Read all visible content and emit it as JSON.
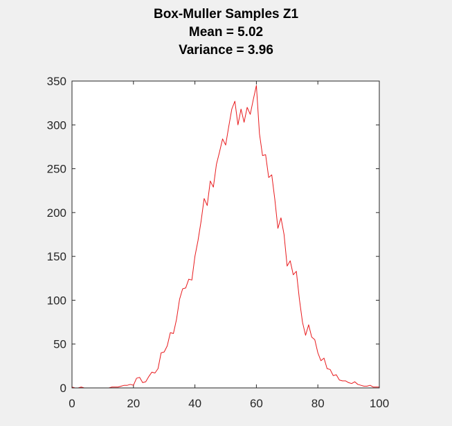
{
  "window": {
    "background": "#f0f0f0"
  },
  "chart_data": {
    "type": "line",
    "title": [
      "Box-Muller Samples Z1",
      "Mean = 5.02",
      "Variance = 3.96"
    ],
    "xlabel": "",
    "ylabel": "",
    "xlim": [
      0,
      100
    ],
    "ylim": [
      0,
      350
    ],
    "xticks": [
      0,
      20,
      40,
      60,
      80,
      100
    ],
    "yticks": [
      0,
      50,
      100,
      150,
      200,
      250,
      300,
      350
    ],
    "grid": false,
    "legend": "none",
    "colors": {
      "series": "#e8191c",
      "axes": "#262626",
      "plot_background": "#ffffff"
    },
    "series": [
      {
        "x": [
          0,
          1,
          2,
          3,
          4,
          5,
          6,
          7,
          8,
          9,
          10,
          11,
          12,
          13,
          14,
          15,
          16,
          17,
          18,
          19,
          20,
          21,
          22,
          23,
          24,
          25,
          26,
          27,
          28,
          29,
          30,
          31,
          32,
          33,
          34,
          35,
          36,
          37,
          38,
          39,
          40,
          41,
          42,
          43,
          44,
          45,
          46,
          47,
          48,
          49,
          50,
          51,
          52,
          53,
          54,
          55,
          56,
          57,
          58,
          59,
          60,
          61,
          62,
          63,
          64,
          65,
          66,
          67,
          68,
          69,
          70,
          71,
          72,
          73,
          74,
          75,
          76,
          77,
          78,
          79,
          80,
          81,
          82,
          83,
          84,
          85,
          86,
          87,
          88,
          89,
          90,
          91,
          92,
          93,
          94,
          95,
          96,
          97,
          98,
          99,
          100
        ],
        "values": [
          1,
          0,
          0,
          1,
          0,
          0,
          0,
          0,
          0,
          0,
          0,
          0,
          0,
          1,
          1,
          1,
          2,
          3,
          3,
          4,
          3,
          11,
          12,
          6,
          7,
          13,
          18,
          17,
          22,
          40,
          41,
          48,
          63,
          62,
          78,
          101,
          113,
          114,
          124,
          123,
          150,
          168,
          190,
          216,
          208,
          236,
          229,
          255,
          269,
          284,
          277,
          298,
          318,
          327,
          300,
          318,
          303,
          320,
          312,
          329,
          345,
          290,
          265,
          266,
          240,
          243,
          215,
          182,
          194,
          175,
          139,
          145,
          129,
          133,
          101,
          75,
          60,
          72,
          58,
          55,
          40,
          31,
          34,
          22,
          21,
          14,
          15,
          9,
          8,
          8,
          6,
          5,
          7,
          4,
          3,
          2,
          2,
          3,
          1,
          1,
          1
        ]
      }
    ]
  }
}
